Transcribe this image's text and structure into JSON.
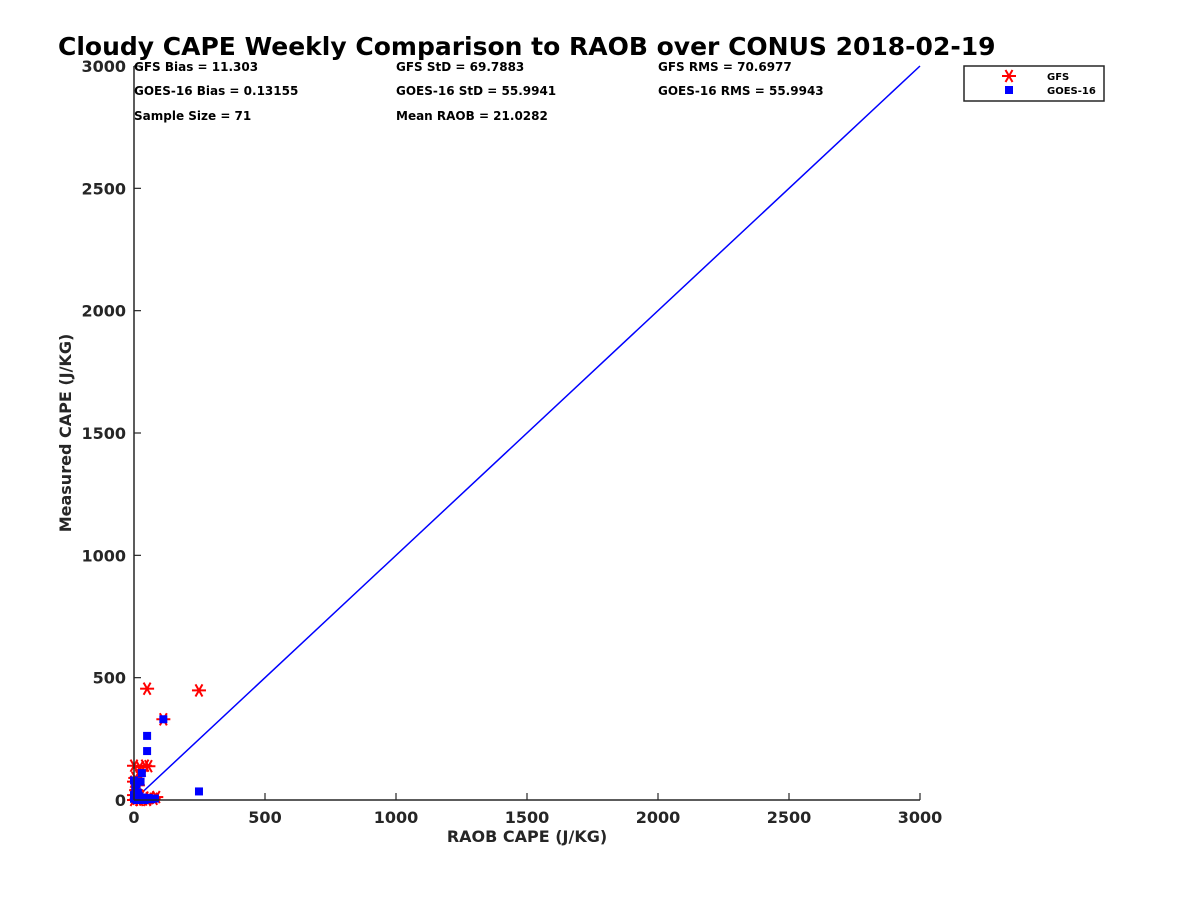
{
  "chart_data": {
    "type": "scatter",
    "title": "Cloudy CAPE Weekly Comparison to RAOB over CONUS 2018-02-19",
    "xlabel": "RAOB CAPE (J/KG)",
    "ylabel": "Measured CAPE (J/KG)",
    "xlim": [
      0,
      3000
    ],
    "ylim": [
      0,
      3000
    ],
    "xticks": [
      0,
      500,
      1000,
      1500,
      2000,
      2500,
      3000
    ],
    "yticks": [
      0,
      500,
      1000,
      1500,
      2000,
      2500,
      3000
    ],
    "grid": false,
    "legend_position": "top-right",
    "reference_line": {
      "x": [
        0,
        3000
      ],
      "y": [
        0,
        3000
      ],
      "color": "#0000ff"
    },
    "stats": [
      {
        "text": "GFS Bias = 11.303"
      },
      {
        "text": "GFS StD = 69.7883"
      },
      {
        "text": "GFS RMS = 70.6977"
      },
      {
        "text": "GOES-16 Bias = 0.13155"
      },
      {
        "text": "GOES-16 StD = 55.9941"
      },
      {
        "text": "GOES-16 RMS = 55.9943"
      },
      {
        "text": "Sample Size = 71"
      },
      {
        "text": "Mean RAOB = 21.0282"
      }
    ],
    "series": [
      {
        "name": "GFS",
        "marker": "asterisk",
        "color": "#ff0000",
        "points": [
          [
            50,
            455
          ],
          [
            248,
            448
          ],
          [
            112,
            330
          ],
          [
            0,
            140
          ],
          [
            22,
            135
          ],
          [
            42,
            140
          ],
          [
            55,
            138
          ],
          [
            30,
            120
          ],
          [
            5,
            90
          ],
          [
            0,
            75
          ],
          [
            15,
            60
          ],
          [
            8,
            40
          ],
          [
            0,
            20
          ],
          [
            25,
            15
          ],
          [
            40,
            10
          ],
          [
            60,
            8
          ],
          [
            75,
            5
          ],
          [
            85,
            12
          ],
          [
            10,
            5
          ],
          [
            0,
            0
          ],
          [
            20,
            0
          ],
          [
            35,
            2
          ],
          [
            50,
            0
          ]
        ]
      },
      {
        "name": "GOES-16",
        "marker": "square",
        "color": "#0000ff",
        "points": [
          [
            112,
            330
          ],
          [
            50,
            262
          ],
          [
            50,
            200
          ],
          [
            248,
            35
          ],
          [
            30,
            110
          ],
          [
            0,
            80
          ],
          [
            10,
            65
          ],
          [
            25,
            75
          ],
          [
            5,
            50
          ],
          [
            15,
            30
          ],
          [
            0,
            20
          ],
          [
            20,
            15
          ],
          [
            35,
            10
          ],
          [
            45,
            5
          ],
          [
            55,
            8
          ],
          [
            65,
            3
          ],
          [
            80,
            6
          ],
          [
            0,
            5
          ],
          [
            10,
            0
          ],
          [
            25,
            2
          ],
          [
            40,
            0
          ]
        ]
      }
    ]
  }
}
